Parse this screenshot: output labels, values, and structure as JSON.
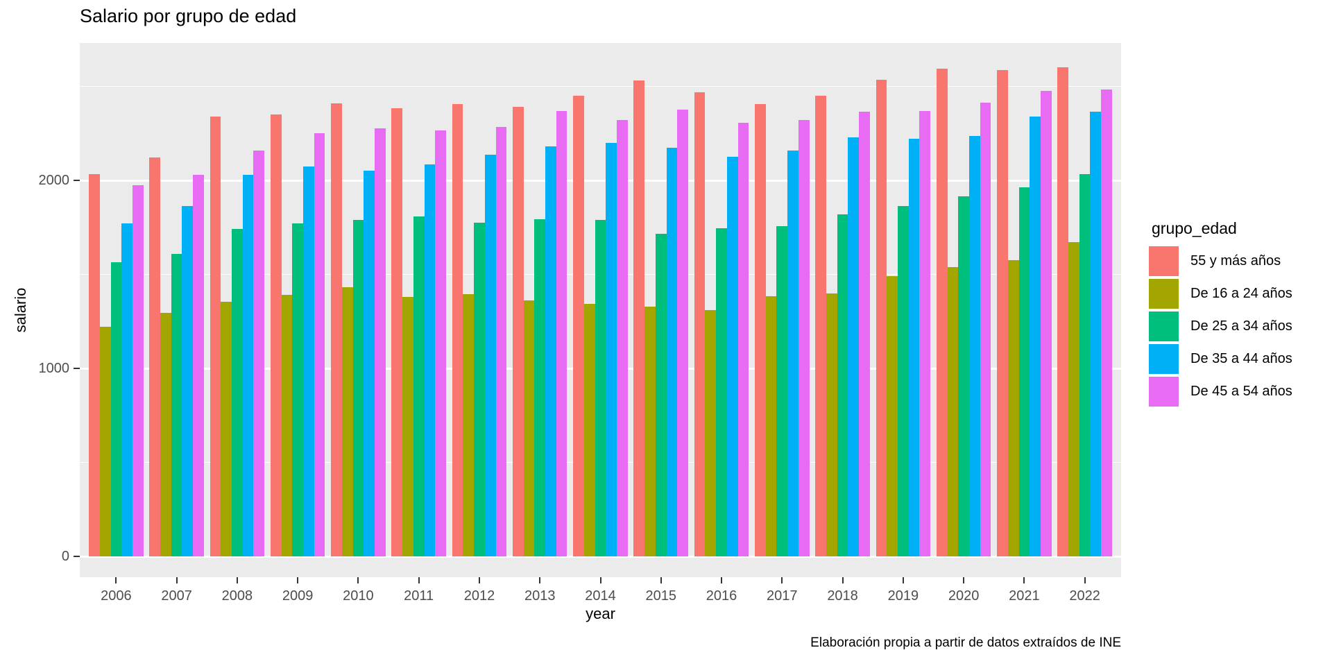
{
  "title": "Salario por grupo de edad",
  "caption": "Elaboración propia a partir de datos extraídos de INE",
  "axes": {
    "x_title": "year",
    "y_title": "salario",
    "y_tick_labels": [
      "0",
      "1000",
      "2000"
    ],
    "y_tick_values": [
      0,
      1000,
      2000
    ]
  },
  "legend": {
    "title": "grupo_edad"
  },
  "colors": {
    "panel_background": "#EBEBEB",
    "gridline": "#FFFFFF",
    "tick_text": "#4D4D4D",
    "tick_mark": "#333333",
    "series": [
      "#F8766D",
      "#A3A500",
      "#00BF7D",
      "#00B0F6",
      "#E76BF3"
    ]
  },
  "chart_data": {
    "type": "bar",
    "title": "Salario por grupo de edad",
    "xlabel": "year",
    "ylabel": "salario",
    "caption": "Elaboración propia a partir de datos extraídos de INE",
    "categories": [
      "2006",
      "2007",
      "2008",
      "2009",
      "2010",
      "2011",
      "2012",
      "2013",
      "2014",
      "2015",
      "2016",
      "2017",
      "2018",
      "2019",
      "2020",
      "2021",
      "2022"
    ],
    "series": [
      {
        "name": "55 y más años",
        "color": "#F8766D",
        "values": [
          2035,
          2120,
          2340,
          2350,
          2410,
          2385,
          2405,
          2390,
          2450,
          2530,
          2470,
          2405,
          2450,
          2535,
          2595,
          2585,
          2600
        ]
      },
      {
        "name": "De 16 a 24 años",
        "color": "#A3A500",
        "values": [
          1220,
          1295,
          1355,
          1390,
          1430,
          1380,
          1395,
          1360,
          1345,
          1330,
          1310,
          1385,
          1400,
          1490,
          1540,
          1575,
          1670
        ]
      },
      {
        "name": "De 25 a 34 años",
        "color": "#00BF7D",
        "values": [
          1565,
          1610,
          1740,
          1770,
          1790,
          1810,
          1775,
          1795,
          1790,
          1715,
          1745,
          1755,
          1820,
          1865,
          1915,
          1965,
          2035
        ]
      },
      {
        "name": "De 35 a 44 años",
        "color": "#00B0F6",
        "values": [
          1770,
          1865,
          2030,
          2075,
          2050,
          2085,
          2135,
          2180,
          2200,
          2175,
          2125,
          2160,
          2230,
          2220,
          2235,
          2340,
          2365
        ]
      },
      {
        "name": "De 45 a 54 años",
        "color": "#E76BF3",
        "values": [
          1975,
          2030,
          2160,
          2250,
          2275,
          2265,
          2285,
          2370,
          2320,
          2375,
          2305,
          2320,
          2365,
          2370,
          2415,
          2475,
          2485
        ]
      }
    ],
    "ylim": [
      -130,
      2733
    ],
    "y_major_gridlines": [
      0,
      1000,
      2000
    ],
    "y_minor_gridlines": [
      500,
      1500,
      2500
    ],
    "grid": true,
    "legend_title": "grupo_edad",
    "legend_position": "right"
  }
}
